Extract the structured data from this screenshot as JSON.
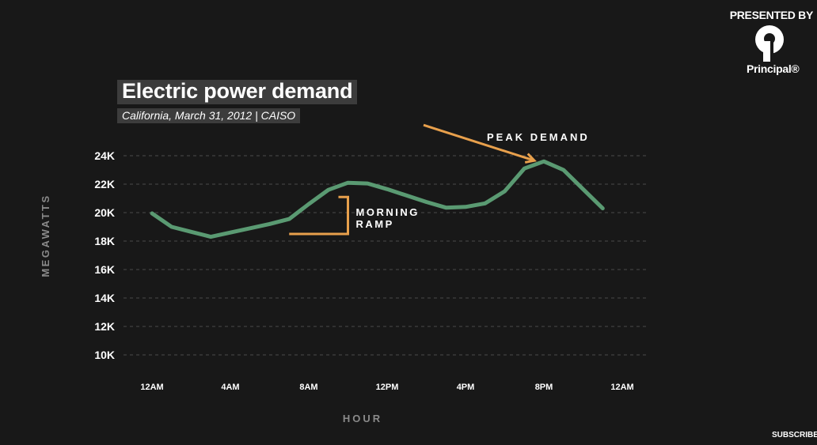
{
  "sponsor": {
    "presented_by": "PRESENTED BY",
    "logo_icon": "principal-logo-icon",
    "name": "Principal®"
  },
  "chart_data": {
    "type": "line",
    "title": "Electric power demand",
    "subtitle": "California, March 31, 2012 | CAISO",
    "xlabel": "HOUR",
    "ylabel": "MEGAWATTS",
    "ylim": [
      10000,
      24000
    ],
    "yticks": [
      10000,
      12000,
      14000,
      16000,
      18000,
      20000,
      22000,
      24000
    ],
    "ytick_labels": [
      "10K",
      "12K",
      "14K",
      "16K",
      "18K",
      "20K",
      "22K",
      "24K"
    ],
    "xlim": [
      0,
      24
    ],
    "xticks": [
      0,
      4,
      8,
      12,
      16,
      20,
      24
    ],
    "xtick_labels": [
      "12AM",
      "4AM",
      "8AM",
      "12PM",
      "4PM",
      "8PM",
      "12AM"
    ],
    "grid": true,
    "line_color": "#5a9a72",
    "series": [
      {
        "x": [
          0,
          1,
          2,
          3,
          4,
          5,
          6,
          7,
          8,
          9,
          10,
          11,
          12,
          13,
          14,
          15,
          16,
          17,
          18,
          19,
          20,
          21,
          22,
          23
        ],
        "values": [
          19950,
          19000,
          18650,
          18300,
          18600,
          18900,
          19200,
          19550,
          20600,
          21600,
          22100,
          22050,
          21650,
          21200,
          20750,
          20350,
          20400,
          20650,
          21500,
          23100,
          23600,
          23000,
          21650,
          20300
        ]
      }
    ],
    "annotations": [
      {
        "text": "PEAK DEMAND",
        "x": 20,
        "y": 23600,
        "color": "#e8a04c"
      },
      {
        "line1": "MORNING",
        "line2": "RAMP",
        "x_start": 7,
        "x_end": 10,
        "y_low": 18500,
        "y_high": 21100,
        "color": "#e8a04c"
      }
    ],
    "footer_text": "SUBSCRIBE"
  }
}
